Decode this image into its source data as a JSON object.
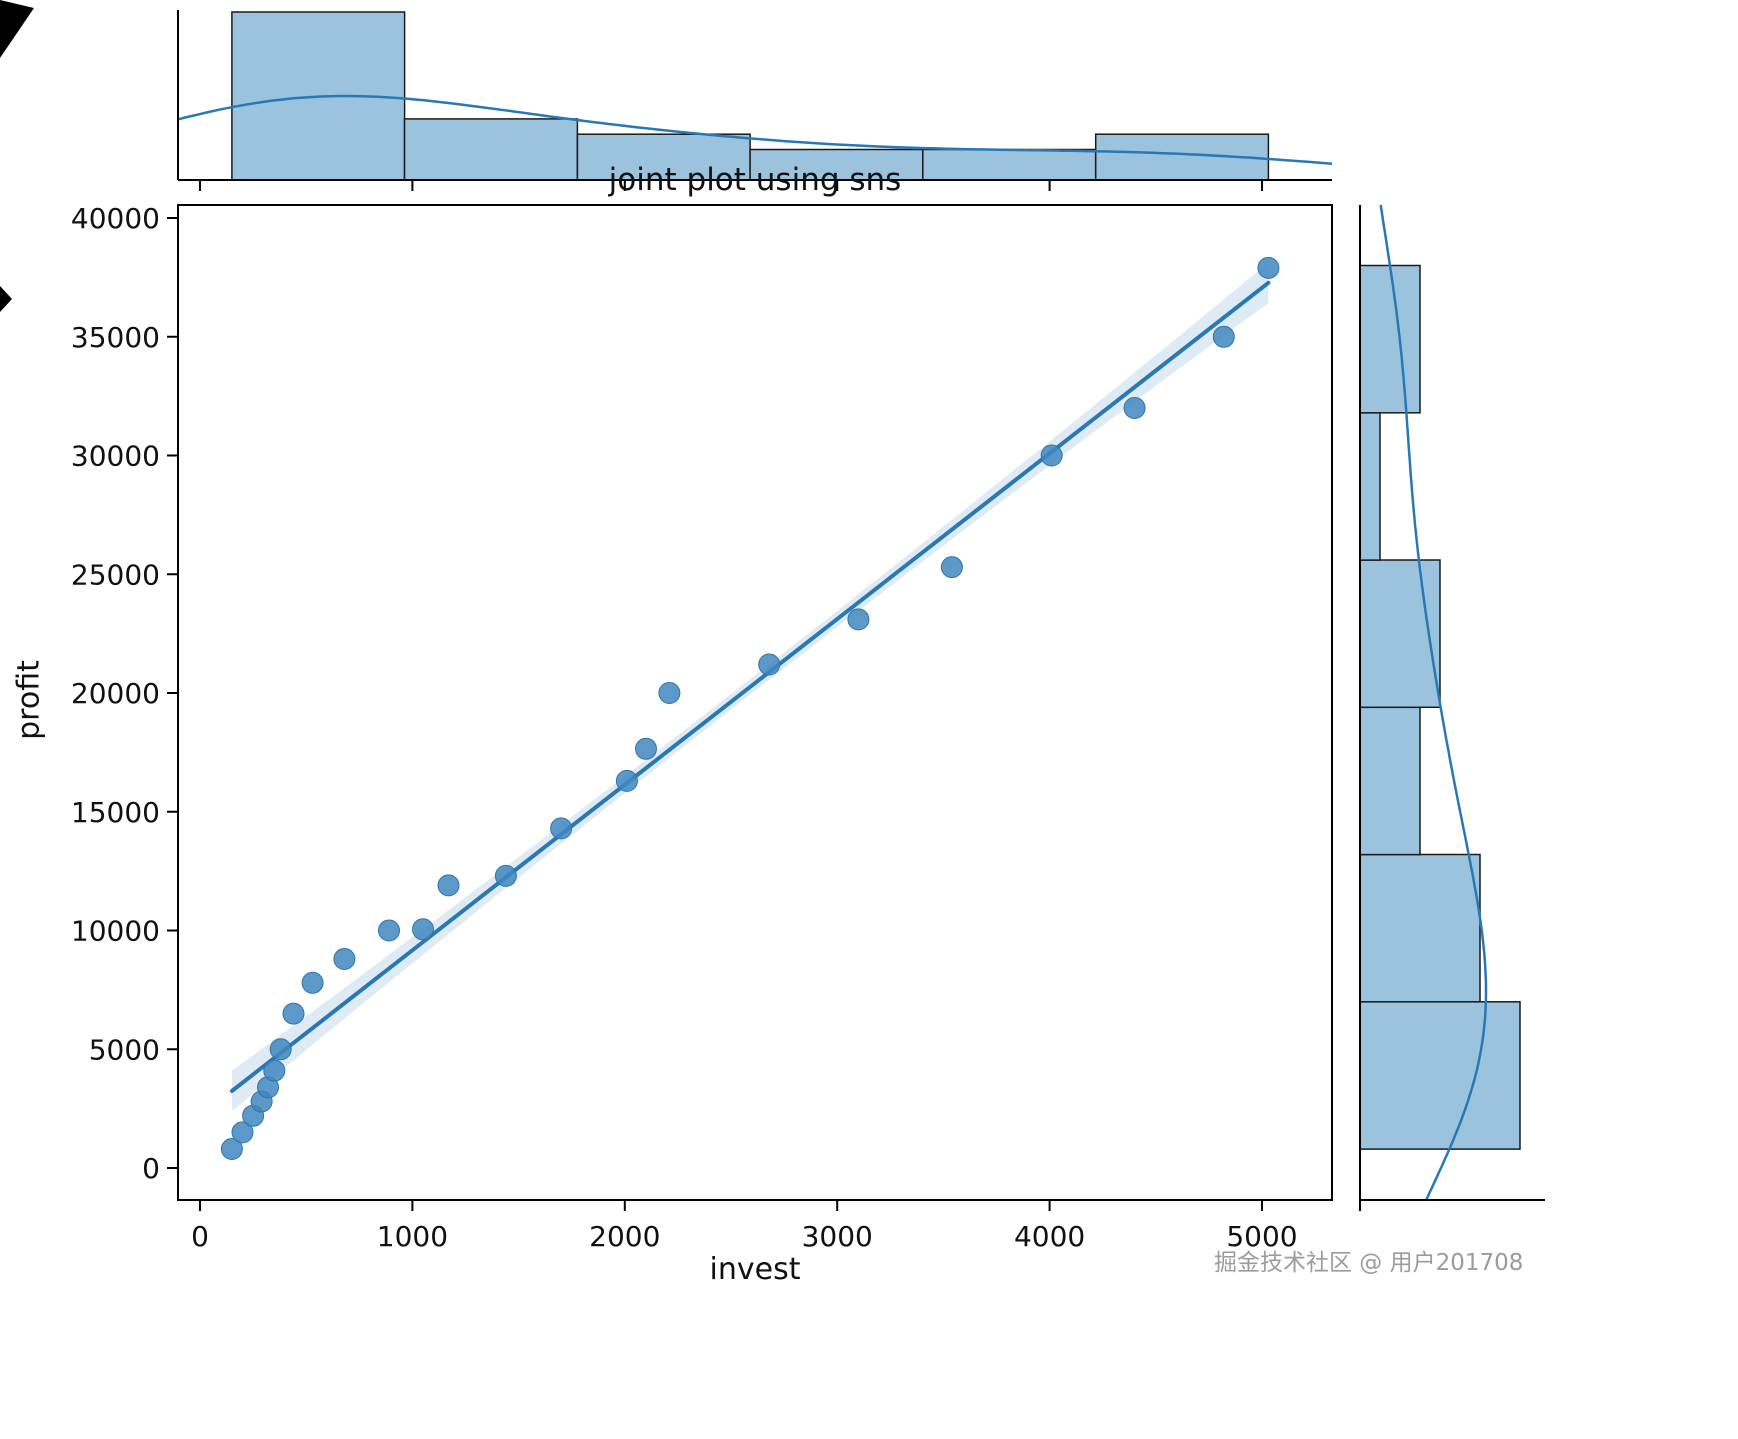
{
  "figure": {
    "title": "joint plot using sns",
    "xlabel": "invest",
    "ylabel": "profit",
    "watermark": "掘金技术社区 @ 用户201708"
  },
  "colors": {
    "accent_line": "#2878b5",
    "scatter_fill": "#3f87c0",
    "scatter_edge": "#2e74a8",
    "hist_fill": "#9cc3de",
    "hist_edge": "#1a1a1a",
    "ci_band": "#2878b5",
    "axis": "#000000",
    "artifact": "#000000",
    "watermark": "#9b9b9b"
  },
  "chart_data": {
    "type": "scatter",
    "subtype": "jointplot-with-regression-and-marginal-histograms",
    "title": "joint plot using sns",
    "xlabel": "invest",
    "ylabel": "profit",
    "xlim": [
      -104,
      5330
    ],
    "ylim": [
      -1350,
      40550
    ],
    "x_ticks": [
      0,
      1000,
      2000,
      3000,
      4000,
      5000
    ],
    "y_ticks": [
      0,
      5000,
      10000,
      15000,
      20000,
      25000,
      30000,
      35000,
      40000
    ],
    "grid": false,
    "legend": false,
    "points": [
      [
        150,
        800
      ],
      [
        200,
        1500
      ],
      [
        250,
        2200
      ],
      [
        290,
        2800
      ],
      [
        320,
        3400
      ],
      [
        350,
        4100
      ],
      [
        380,
        5000
      ],
      [
        440,
        6500
      ],
      [
        530,
        7800
      ],
      [
        680,
        8800
      ],
      [
        890,
        10000
      ],
      [
        1050,
        10050
      ],
      [
        1170,
        11900
      ],
      [
        1440,
        12300
      ],
      [
        1700,
        14300
      ],
      [
        2010,
        16300
      ],
      [
        2100,
        17650
      ],
      [
        2210,
        20000
      ],
      [
        2680,
        21200
      ],
      [
        3100,
        23100
      ],
      [
        3540,
        25300
      ],
      [
        4010,
        30000
      ],
      [
        4400,
        32000
      ],
      [
        4820,
        35000
      ],
      [
        5030,
        37900
      ]
    ],
    "regression_line": true,
    "confidence_band": true,
    "marginal_x": {
      "type": "histogram_kde",
      "bin_edges": [
        150,
        963,
        1777,
        2590,
        3403,
        4217,
        5030
      ],
      "counts": [
        11,
        4,
        3,
        2,
        2,
        3
      ]
    },
    "marginal_y": {
      "type": "histogram_kde",
      "bin_edges": [
        800,
        7000,
        13200,
        19400,
        25600,
        31800,
        38000
      ],
      "counts": [
        8,
        6,
        3,
        4,
        1,
        3
      ]
    }
  }
}
